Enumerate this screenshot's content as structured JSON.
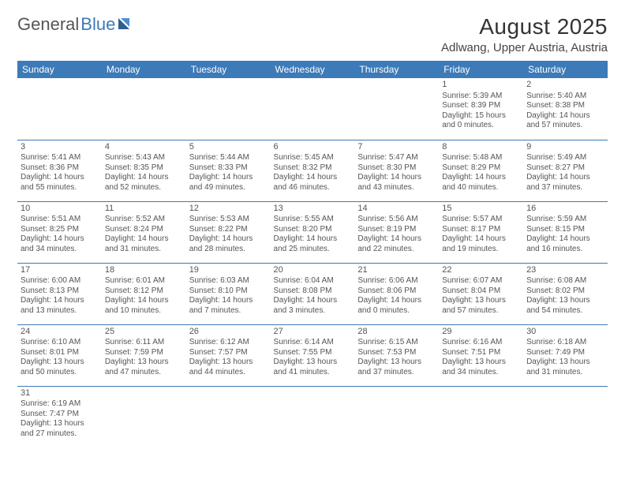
{
  "brand": {
    "part1": "General",
    "part2": "Blue"
  },
  "title": "August 2025",
  "location": "Adlwang, Upper Austria, Austria",
  "colors": {
    "header_bg": "#3d7ab8",
    "header_text": "#ffffff",
    "cell_border": "#3d7ab8",
    "text": "#555555",
    "title": "#333333",
    "page_bg": "#ffffff"
  },
  "weekdays": [
    "Sunday",
    "Monday",
    "Tuesday",
    "Wednesday",
    "Thursday",
    "Friday",
    "Saturday"
  ],
  "weeks": [
    [
      null,
      null,
      null,
      null,
      null,
      {
        "day": "1",
        "sunrise": "Sunrise: 5:39 AM",
        "sunset": "Sunset: 8:39 PM",
        "daylight1": "Daylight: 15 hours",
        "daylight2": "and 0 minutes."
      },
      {
        "day": "2",
        "sunrise": "Sunrise: 5:40 AM",
        "sunset": "Sunset: 8:38 PM",
        "daylight1": "Daylight: 14 hours",
        "daylight2": "and 57 minutes."
      }
    ],
    [
      {
        "day": "3",
        "sunrise": "Sunrise: 5:41 AM",
        "sunset": "Sunset: 8:36 PM",
        "daylight1": "Daylight: 14 hours",
        "daylight2": "and 55 minutes."
      },
      {
        "day": "4",
        "sunrise": "Sunrise: 5:43 AM",
        "sunset": "Sunset: 8:35 PM",
        "daylight1": "Daylight: 14 hours",
        "daylight2": "and 52 minutes."
      },
      {
        "day": "5",
        "sunrise": "Sunrise: 5:44 AM",
        "sunset": "Sunset: 8:33 PM",
        "daylight1": "Daylight: 14 hours",
        "daylight2": "and 49 minutes."
      },
      {
        "day": "6",
        "sunrise": "Sunrise: 5:45 AM",
        "sunset": "Sunset: 8:32 PM",
        "daylight1": "Daylight: 14 hours",
        "daylight2": "and 46 minutes."
      },
      {
        "day": "7",
        "sunrise": "Sunrise: 5:47 AM",
        "sunset": "Sunset: 8:30 PM",
        "daylight1": "Daylight: 14 hours",
        "daylight2": "and 43 minutes."
      },
      {
        "day": "8",
        "sunrise": "Sunrise: 5:48 AM",
        "sunset": "Sunset: 8:29 PM",
        "daylight1": "Daylight: 14 hours",
        "daylight2": "and 40 minutes."
      },
      {
        "day": "9",
        "sunrise": "Sunrise: 5:49 AM",
        "sunset": "Sunset: 8:27 PM",
        "daylight1": "Daylight: 14 hours",
        "daylight2": "and 37 minutes."
      }
    ],
    [
      {
        "day": "10",
        "sunrise": "Sunrise: 5:51 AM",
        "sunset": "Sunset: 8:25 PM",
        "daylight1": "Daylight: 14 hours",
        "daylight2": "and 34 minutes."
      },
      {
        "day": "11",
        "sunrise": "Sunrise: 5:52 AM",
        "sunset": "Sunset: 8:24 PM",
        "daylight1": "Daylight: 14 hours",
        "daylight2": "and 31 minutes."
      },
      {
        "day": "12",
        "sunrise": "Sunrise: 5:53 AM",
        "sunset": "Sunset: 8:22 PM",
        "daylight1": "Daylight: 14 hours",
        "daylight2": "and 28 minutes."
      },
      {
        "day": "13",
        "sunrise": "Sunrise: 5:55 AM",
        "sunset": "Sunset: 8:20 PM",
        "daylight1": "Daylight: 14 hours",
        "daylight2": "and 25 minutes."
      },
      {
        "day": "14",
        "sunrise": "Sunrise: 5:56 AM",
        "sunset": "Sunset: 8:19 PM",
        "daylight1": "Daylight: 14 hours",
        "daylight2": "and 22 minutes."
      },
      {
        "day": "15",
        "sunrise": "Sunrise: 5:57 AM",
        "sunset": "Sunset: 8:17 PM",
        "daylight1": "Daylight: 14 hours",
        "daylight2": "and 19 minutes."
      },
      {
        "day": "16",
        "sunrise": "Sunrise: 5:59 AM",
        "sunset": "Sunset: 8:15 PM",
        "daylight1": "Daylight: 14 hours",
        "daylight2": "and 16 minutes."
      }
    ],
    [
      {
        "day": "17",
        "sunrise": "Sunrise: 6:00 AM",
        "sunset": "Sunset: 8:13 PM",
        "daylight1": "Daylight: 14 hours",
        "daylight2": "and 13 minutes."
      },
      {
        "day": "18",
        "sunrise": "Sunrise: 6:01 AM",
        "sunset": "Sunset: 8:12 PM",
        "daylight1": "Daylight: 14 hours",
        "daylight2": "and 10 minutes."
      },
      {
        "day": "19",
        "sunrise": "Sunrise: 6:03 AM",
        "sunset": "Sunset: 8:10 PM",
        "daylight1": "Daylight: 14 hours",
        "daylight2": "and 7 minutes."
      },
      {
        "day": "20",
        "sunrise": "Sunrise: 6:04 AM",
        "sunset": "Sunset: 8:08 PM",
        "daylight1": "Daylight: 14 hours",
        "daylight2": "and 3 minutes."
      },
      {
        "day": "21",
        "sunrise": "Sunrise: 6:06 AM",
        "sunset": "Sunset: 8:06 PM",
        "daylight1": "Daylight: 14 hours",
        "daylight2": "and 0 minutes."
      },
      {
        "day": "22",
        "sunrise": "Sunrise: 6:07 AM",
        "sunset": "Sunset: 8:04 PM",
        "daylight1": "Daylight: 13 hours",
        "daylight2": "and 57 minutes."
      },
      {
        "day": "23",
        "sunrise": "Sunrise: 6:08 AM",
        "sunset": "Sunset: 8:02 PM",
        "daylight1": "Daylight: 13 hours",
        "daylight2": "and 54 minutes."
      }
    ],
    [
      {
        "day": "24",
        "sunrise": "Sunrise: 6:10 AM",
        "sunset": "Sunset: 8:01 PM",
        "daylight1": "Daylight: 13 hours",
        "daylight2": "and 50 minutes."
      },
      {
        "day": "25",
        "sunrise": "Sunrise: 6:11 AM",
        "sunset": "Sunset: 7:59 PM",
        "daylight1": "Daylight: 13 hours",
        "daylight2": "and 47 minutes."
      },
      {
        "day": "26",
        "sunrise": "Sunrise: 6:12 AM",
        "sunset": "Sunset: 7:57 PM",
        "daylight1": "Daylight: 13 hours",
        "daylight2": "and 44 minutes."
      },
      {
        "day": "27",
        "sunrise": "Sunrise: 6:14 AM",
        "sunset": "Sunset: 7:55 PM",
        "daylight1": "Daylight: 13 hours",
        "daylight2": "and 41 minutes."
      },
      {
        "day": "28",
        "sunrise": "Sunrise: 6:15 AM",
        "sunset": "Sunset: 7:53 PM",
        "daylight1": "Daylight: 13 hours",
        "daylight2": "and 37 minutes."
      },
      {
        "day": "29",
        "sunrise": "Sunrise: 6:16 AM",
        "sunset": "Sunset: 7:51 PM",
        "daylight1": "Daylight: 13 hours",
        "daylight2": "and 34 minutes."
      },
      {
        "day": "30",
        "sunrise": "Sunrise: 6:18 AM",
        "sunset": "Sunset: 7:49 PM",
        "daylight1": "Daylight: 13 hours",
        "daylight2": "and 31 minutes."
      }
    ],
    [
      {
        "day": "31",
        "sunrise": "Sunrise: 6:19 AM",
        "sunset": "Sunset: 7:47 PM",
        "daylight1": "Daylight: 13 hours",
        "daylight2": "and 27 minutes."
      },
      null,
      null,
      null,
      null,
      null,
      null
    ]
  ]
}
